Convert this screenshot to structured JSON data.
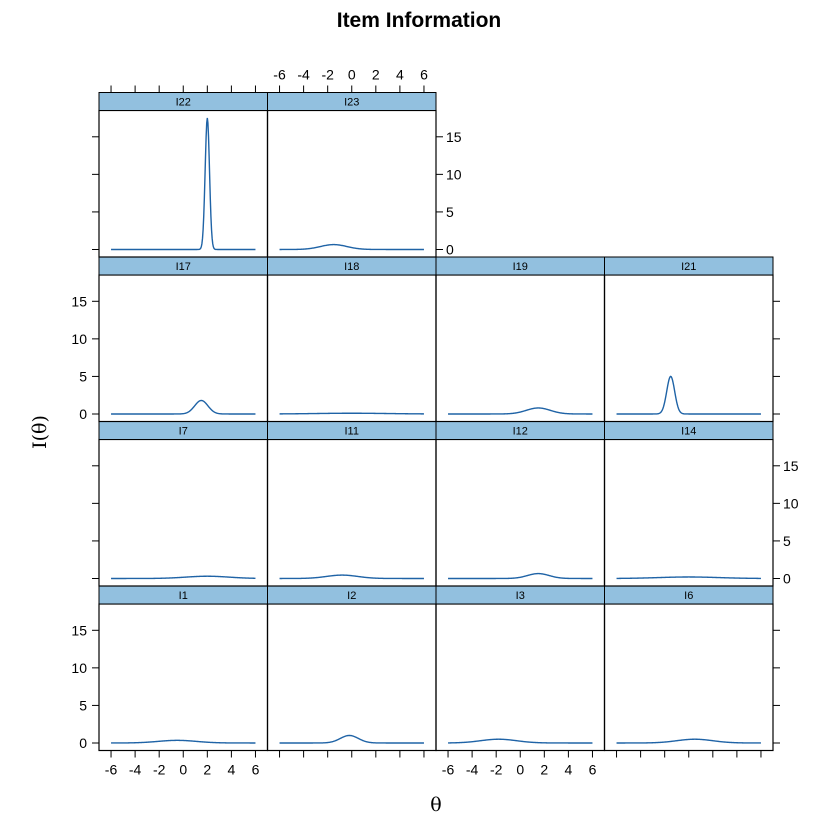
{
  "chart_data": {
    "type": "line",
    "title": "Item Information",
    "xlabel": "θ",
    "ylabel": "I(θ)",
    "xlim": [
      -7,
      7
    ],
    "ylim": [
      -1,
      18.5
    ],
    "xticks": [
      -6,
      -4,
      -2,
      0,
      2,
      4,
      6
    ],
    "yticks": [
      0,
      5,
      10,
      15
    ],
    "colors": {
      "line": "#1f63a6",
      "strip": "#92c0df"
    },
    "panels": [
      {
        "label": "I1",
        "row": 0,
        "col": 0,
        "peak_theta": -0.5,
        "peak_info": 0.35,
        "width": 1.6
      },
      {
        "label": "I2",
        "row": 0,
        "col": 1,
        "peak_theta": -0.2,
        "peak_info": 1.0,
        "width": 0.75
      },
      {
        "label": "I3",
        "row": 0,
        "col": 2,
        "peak_theta": -1.8,
        "peak_info": 0.5,
        "width": 1.5
      },
      {
        "label": "I6",
        "row": 0,
        "col": 3,
        "peak_theta": 0.5,
        "peak_info": 0.5,
        "width": 1.5
      },
      {
        "label": "I7",
        "row": 1,
        "col": 0,
        "peak_theta": 2.0,
        "peak_info": 0.3,
        "width": 1.8
      },
      {
        "label": "I11",
        "row": 1,
        "col": 1,
        "peak_theta": -0.8,
        "peak_info": 0.45,
        "width": 1.3
      },
      {
        "label": "I12",
        "row": 1,
        "col": 2,
        "peak_theta": 1.5,
        "peak_info": 0.65,
        "width": 0.9
      },
      {
        "label": "I14",
        "row": 1,
        "col": 3,
        "peak_theta": 0.0,
        "peak_info": 0.2,
        "width": 2.5
      },
      {
        "label": "I17",
        "row": 2,
        "col": 0,
        "peak_theta": 1.5,
        "peak_info": 1.8,
        "width": 0.55
      },
      {
        "label": "I18",
        "row": 2,
        "col": 1,
        "peak_theta": 0.0,
        "peak_info": 0.1,
        "width": 3.0
      },
      {
        "label": "I19",
        "row": 2,
        "col": 2,
        "peak_theta": 1.5,
        "peak_info": 0.8,
        "width": 1.0
      },
      {
        "label": "I21",
        "row": 2,
        "col": 3,
        "peak_theta": -1.5,
        "peak_info": 5.0,
        "width": 0.33
      },
      {
        "label": "I22",
        "row": 3,
        "col": 0,
        "peak_theta": 2.0,
        "peak_info": 17.5,
        "width": 0.18
      },
      {
        "label": "I23",
        "row": 3,
        "col": 1,
        "peak_theta": -1.5,
        "peak_info": 0.65,
        "width": 1.1
      }
    ]
  }
}
